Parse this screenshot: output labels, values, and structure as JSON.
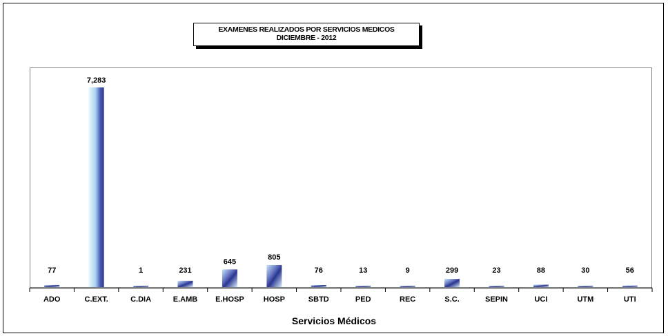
{
  "chart_data": {
    "type": "bar",
    "title": "EXAMENES REALIZADOS POR SERVICIOS MEDICOS",
    "subtitle": "DICIEMBRE  -  2012",
    "xlabel": "Servicios Médicos",
    "ylabel": "",
    "categories": [
      "ADO",
      "C.EXT.",
      "C.DIA",
      "E.AMB",
      "E.HOSP",
      "HOSP",
      "SBTD",
      "PED",
      "REC",
      "S.C.",
      "SEPIN",
      "UCI",
      "UTM",
      "UTI"
    ],
    "values": [
      77,
      7283,
      1,
      231,
      645,
      805,
      76,
      13,
      9,
      299,
      23,
      88,
      30,
      56
    ],
    "data_labels": [
      "77",
      "7,283",
      "1",
      "231",
      "645",
      "805",
      "76",
      "13",
      "9",
      "299",
      "23",
      "88",
      "30",
      "56"
    ],
    "ylim": [
      0,
      8000
    ],
    "grid": false,
    "legend": "none",
    "colors": {
      "bar_dark": "#2a3590",
      "bar_light": "#c8e4f8",
      "border": "#808080"
    }
  }
}
